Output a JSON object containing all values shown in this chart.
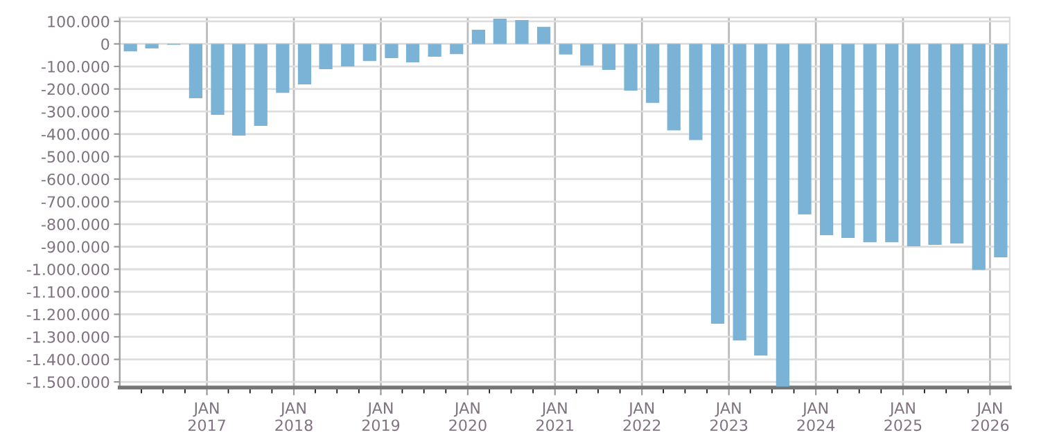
{
  "chart_data": {
    "type": "bar",
    "x": [
      "2016-02-15",
      "2016-05-15",
      "2016-08-15",
      "2016-11-15",
      "2017-02-15",
      "2017-05-15",
      "2017-08-15",
      "2017-11-15",
      "2018-02-15",
      "2018-05-15",
      "2018-08-15",
      "2018-11-15",
      "2019-02-15",
      "2019-05-15",
      "2019-08-15",
      "2019-11-15",
      "2020-02-15",
      "2020-05-15",
      "2020-08-15",
      "2020-11-15",
      "2021-02-15",
      "2021-05-15",
      "2021-08-15",
      "2021-11-15",
      "2022-02-15",
      "2022-05-15",
      "2022-08-15",
      "2022-11-15",
      "2023-02-15",
      "2023-05-15",
      "2023-08-15",
      "2023-11-15",
      "2024-02-15",
      "2024-05-15",
      "2024-08-15",
      "2024-11-15",
      "2025-02-15",
      "2025-05-15",
      "2025-08-15",
      "2025-11-15",
      "2026-02-15"
    ],
    "values": [
      -33000,
      -20000,
      -4000,
      -241000,
      -315000,
      -407000,
      -364000,
      -217000,
      -180000,
      -112000,
      -100000,
      -76000,
      -63000,
      -82000,
      -57000,
      -45000,
      63000,
      112000,
      106000,
      76000,
      -47000,
      -96000,
      -115000,
      -207000,
      -262000,
      -384000,
      -427000,
      -1242000,
      -1316000,
      -1383000,
      -1520000,
      -757000,
      -849000,
      -861000,
      -880000,
      -880000,
      -898000,
      -892000,
      -886000,
      -1003000,
      -947000
    ],
    "color": "#7ab3d5",
    "xlim": [
      "2016-01-01",
      "2026-03-25"
    ],
    "xticks": [
      {
        "value": "2016-04-01",
        "label": null
      },
      {
        "value": "2016-07-01",
        "label": null
      },
      {
        "value": "2016-10-01",
        "label": null
      },
      {
        "value": "2017-01-01",
        "label": "JAN\n2017"
      },
      {
        "value": "2017-04-01",
        "label": null
      },
      {
        "value": "2017-07-01",
        "label": null
      },
      {
        "value": "2017-10-01",
        "label": null
      },
      {
        "value": "2018-01-01",
        "label": "JAN\n2018"
      },
      {
        "value": "2018-04-01",
        "label": null
      },
      {
        "value": "2018-07-01",
        "label": null
      },
      {
        "value": "2018-10-01",
        "label": null
      },
      {
        "value": "2019-01-01",
        "label": "JAN\n2019"
      },
      {
        "value": "2019-04-01",
        "label": null
      },
      {
        "value": "2019-07-01",
        "label": null
      },
      {
        "value": "2019-10-01",
        "label": null
      },
      {
        "value": "2020-01-01",
        "label": "JAN\n2020"
      },
      {
        "value": "2020-04-01",
        "label": null
      },
      {
        "value": "2020-07-01",
        "label": null
      },
      {
        "value": "2020-10-01",
        "label": null
      },
      {
        "value": "2021-01-01",
        "label": "JAN\n2021"
      },
      {
        "value": "2021-04-01",
        "label": null
      },
      {
        "value": "2021-07-01",
        "label": null
      },
      {
        "value": "2021-10-01",
        "label": null
      },
      {
        "value": "2022-01-01",
        "label": "JAN\n2022"
      },
      {
        "value": "2022-04-01",
        "label": null
      },
      {
        "value": "2022-07-01",
        "label": null
      },
      {
        "value": "2022-10-01",
        "label": null
      },
      {
        "value": "2023-01-01",
        "label": "JAN\n2023"
      },
      {
        "value": "2023-04-01",
        "label": null
      },
      {
        "value": "2023-07-01",
        "label": null
      },
      {
        "value": "2023-10-01",
        "label": null
      },
      {
        "value": "2024-01-01",
        "label": "JAN\n2024"
      },
      {
        "value": "2024-04-01",
        "label": null
      },
      {
        "value": "2024-07-01",
        "label": null
      },
      {
        "value": "2024-10-01",
        "label": null
      },
      {
        "value": "2025-01-01",
        "label": "JAN\n2025"
      },
      {
        "value": "2025-04-01",
        "label": null
      },
      {
        "value": "2025-07-01",
        "label": null
      },
      {
        "value": "2025-10-01",
        "label": null
      },
      {
        "value": "2026-01-01",
        "label": "JAN\n2026"
      }
    ],
    "ylim": [
      -1525000,
      118000
    ],
    "yticks": [
      {
        "value": 100000,
        "label": "100.000"
      },
      0,
      {
        "value": -100000,
        "label": "-100.000"
      },
      {
        "value": -200000,
        "label": "-200.000"
      },
      {
        "value": -300000,
        "label": "-300.000"
      },
      {
        "value": -400000,
        "label": "-400.000"
      },
      {
        "value": -500000,
        "label": "-500.000"
      },
      {
        "value": -600000,
        "label": "-600.000"
      },
      {
        "value": -700000,
        "label": "-700.000"
      },
      {
        "value": -800000,
        "label": "-800.000"
      },
      {
        "value": -900000,
        "label": "-900.000"
      },
      {
        "value": -1000000,
        "label": "-1.000.000"
      },
      {
        "value": -1100000,
        "label": "-1.100.000"
      },
      {
        "value": -1200000,
        "label": "-1.200.000"
      },
      {
        "value": -1300000,
        "label": "-1.300.000"
      },
      {
        "value": -1400000,
        "label": "-1.400.000"
      },
      {
        "value": -1500000,
        "label": "-1.500.000"
      }
    ],
    "grid": true
  }
}
